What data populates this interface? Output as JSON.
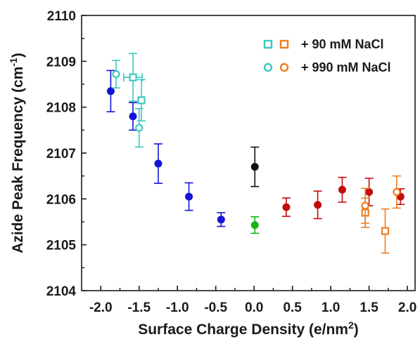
{
  "chart_data": {
    "type": "scatter",
    "title": "",
    "xlabel": "Surface Charge Density (e/nm",
    "xlabel_sup": "2",
    "xlabel_suffix": ")",
    "ylabel": "Azide Peak Frequency (cm",
    "ylabel_sup": "-1",
    "ylabel_suffix": ")",
    "xlim": [
      -2.25,
      2.1
    ],
    "ylim": [
      2104,
      2110
    ],
    "xticks": [
      -2.0,
      -1.5,
      -1.0,
      -0.5,
      0.0,
      0.5,
      1.0,
      1.5,
      2.0
    ],
    "xtick_labels": [
      "-2.0",
      "-1.5",
      "-1.0",
      "-0.5",
      "0.0",
      "0.5",
      "1.0",
      "1.5",
      "2.0"
    ],
    "yticks": [
      2104,
      2105,
      2106,
      2107,
      2108,
      2109,
      2110
    ],
    "ytick_labels": [
      "2104",
      "2105",
      "2106",
      "2107",
      "2108",
      "2109",
      "2110"
    ],
    "grid": false,
    "legend_position": "top-right",
    "legend": [
      {
        "label": "+ 90 mM NaCl",
        "marker": "square-open",
        "colors": [
          "#3cc8c0",
          "#ee7d22"
        ]
      },
      {
        "label": "+ 990 mM NaCl",
        "marker": "circle-open",
        "colors": [
          "#3cc8c0",
          "#ee7d22"
        ]
      }
    ],
    "series": [
      {
        "marker": "circle-filled",
        "color": "#1414d8",
        "points": [
          {
            "x": -1.87,
            "y": 2108.35,
            "yerr": 0.45
          },
          {
            "x": -1.58,
            "y": 2107.8,
            "yerr": 0.3
          },
          {
            "x": -1.25,
            "y": 2106.77,
            "yerr": 0.43
          },
          {
            "x": -0.85,
            "y": 2106.05,
            "yerr": 0.3
          },
          {
            "x": -0.43,
            "y": 2105.55,
            "yerr": 0.15
          }
        ]
      },
      {
        "marker": "circle-filled",
        "color": "#111111",
        "points": [
          {
            "x": 0.01,
            "y": 2106.7,
            "yerr": 0.43
          }
        ]
      },
      {
        "marker": "circle-filled",
        "color": "#18b418",
        "points": [
          {
            "x": 0.01,
            "y": 2105.43,
            "yerr": 0.18
          }
        ]
      },
      {
        "marker": "circle-filled",
        "color": "#c00d0d",
        "points": [
          {
            "x": 0.42,
            "y": 2105.82,
            "yerr": 0.2
          },
          {
            "x": 0.83,
            "y": 2105.87,
            "yerr": 0.3
          },
          {
            "x": 1.15,
            "y": 2106.2,
            "yerr": 0.27
          },
          {
            "x": 1.5,
            "y": 2106.15,
            "yerr": 0.3
          },
          {
            "x": 1.91,
            "y": 2106.05,
            "yerr": 0.17
          }
        ]
      },
      {
        "marker": "square-open",
        "color": "#3cc8c0",
        "points": [
          {
            "x": -1.58,
            "y": 2108.65,
            "yerr": 0.52,
            "xerr": 0.12
          },
          {
            "x": -1.47,
            "y": 2108.15,
            "yerr": 0.45
          }
        ]
      },
      {
        "marker": "circle-open",
        "color": "#3cc8c0",
        "points": [
          {
            "x": -1.8,
            "y": 2108.72,
            "yerr": 0.3
          },
          {
            "x": -1.5,
            "y": 2107.55,
            "yerr": 0.42
          }
        ]
      },
      {
        "marker": "square-open",
        "color": "#ee7d22",
        "points": [
          {
            "x": 1.45,
            "y": 2105.7,
            "yerr": 0.32
          },
          {
            "x": 1.71,
            "y": 2105.3,
            "yerr": 0.48
          }
        ]
      },
      {
        "marker": "circle-open",
        "color": "#ee7d22",
        "points": [
          {
            "x": 1.45,
            "y": 2105.85,
            "yerr": 0.38
          },
          {
            "x": 1.86,
            "y": 2106.15,
            "yerr": 0.35
          }
        ]
      }
    ]
  }
}
